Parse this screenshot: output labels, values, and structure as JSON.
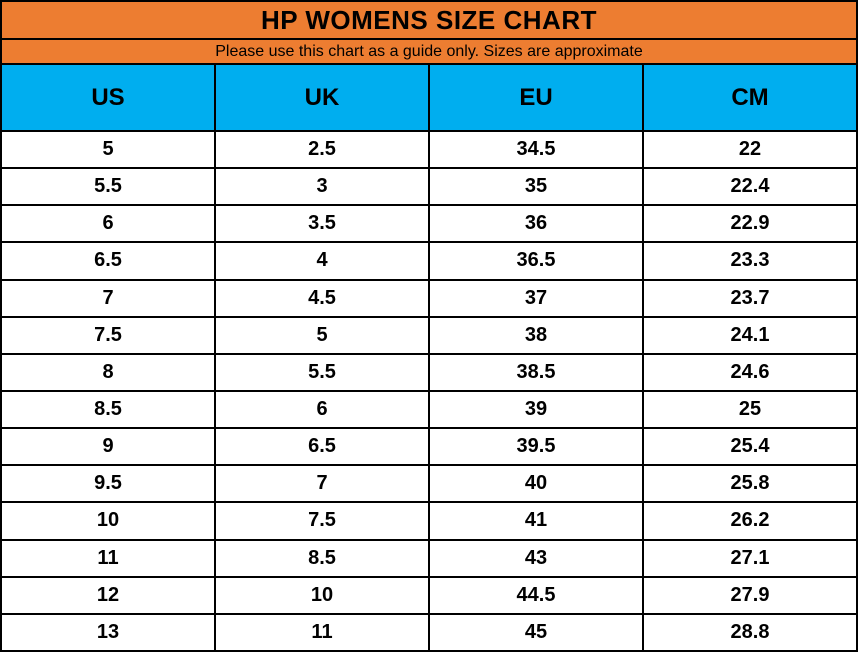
{
  "title": "HP WOMENS SIZE CHART",
  "subtitle": "Please use this chart as a guide only. Sizes are approximate",
  "colors": {
    "orange": "#ED7D31",
    "blue": "#00AEEF",
    "border": "#000000",
    "row_bg": "#FFFFFF",
    "text": "#000000"
  },
  "chart_data": {
    "type": "table",
    "title": "HP WOMENS SIZE CHART",
    "subtitle": "Please use this chart as a guide only. Sizes are approximate",
    "columns": [
      "US",
      "UK",
      "EU",
      "CM"
    ],
    "rows": [
      [
        "5",
        "2.5",
        "34.5",
        "22"
      ],
      [
        "5.5",
        "3",
        "35",
        "22.4"
      ],
      [
        "6",
        "3.5",
        "36",
        "22.9"
      ],
      [
        "6.5",
        "4",
        "36.5",
        "23.3"
      ],
      [
        "7",
        "4.5",
        "37",
        "23.7"
      ],
      [
        "7.5",
        "5",
        "38",
        "24.1"
      ],
      [
        "8",
        "5.5",
        "38.5",
        "24.6"
      ],
      [
        "8.5",
        "6",
        "39",
        "25"
      ],
      [
        "9",
        "6.5",
        "39.5",
        "25.4"
      ],
      [
        "9.5",
        "7",
        "40",
        "25.8"
      ],
      [
        "10",
        "7.5",
        "41",
        "26.2"
      ],
      [
        "11",
        "8.5",
        "43",
        "27.1"
      ],
      [
        "12",
        "10",
        "44.5",
        "27.9"
      ],
      [
        "13",
        "11",
        "45",
        "28.8"
      ]
    ]
  }
}
